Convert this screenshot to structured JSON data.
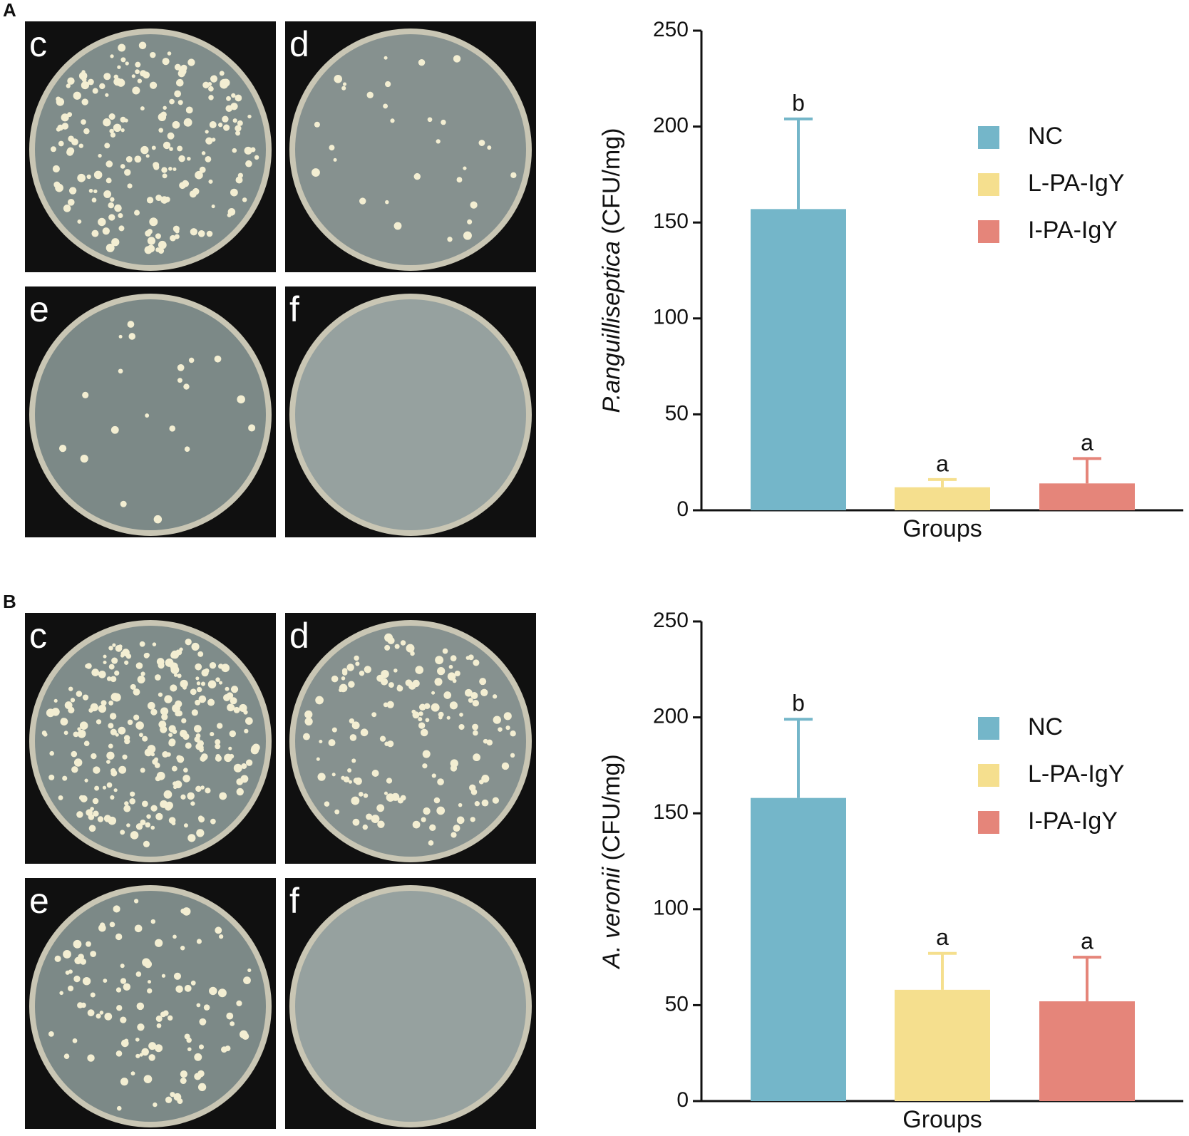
{
  "panels": [
    {
      "label": "A",
      "plates": [
        "c",
        "d",
        "e",
        "f"
      ]
    },
    {
      "label": "B",
      "plates": [
        "c",
        "d",
        "e",
        "f"
      ]
    }
  ],
  "chart_data": [
    {
      "type": "bar",
      "ylabel_species": "P.anguilliseptica",
      "ylabel_unit": "(CFU/mg)",
      "xlabel": "Groups",
      "ylim": [
        0,
        250
      ],
      "yticks": [
        0,
        50,
        100,
        150,
        200,
        250
      ],
      "legend": "upper right",
      "series": [
        {
          "name": "NC",
          "color": "#74b6c9",
          "values": [
            157
          ],
          "errors": [
            47
          ],
          "significance": [
            "b"
          ]
        },
        {
          "name": "L-PA-IgY",
          "color": "#f5df8e",
          "values": [
            12
          ],
          "errors": [
            4
          ],
          "significance": [
            "a"
          ]
        },
        {
          "name": "I-PA-IgY",
          "color": "#e5857a",
          "values": [
            14
          ],
          "errors": [
            13
          ],
          "significance": [
            "a"
          ]
        }
      ]
    },
    {
      "type": "bar",
      "ylabel_species": "A. veronii",
      "ylabel_unit": "(CFU/mg)",
      "xlabel": "Groups",
      "ylim": [
        0,
        250
      ],
      "yticks": [
        0,
        50,
        100,
        150,
        200,
        250
      ],
      "legend": "upper right",
      "series": [
        {
          "name": "NC",
          "color": "#74b6c9",
          "values": [
            158
          ],
          "errors": [
            41
          ],
          "significance": [
            "b"
          ]
        },
        {
          "name": "L-PA-IgY",
          "color": "#f5df8e",
          "values": [
            58
          ],
          "errors": [
            19
          ],
          "significance": [
            "a"
          ]
        },
        {
          "name": "I-PA-IgY",
          "color": "#e5857a",
          "values": [
            52
          ],
          "errors": [
            23
          ],
          "significance": [
            "a"
          ]
        }
      ]
    }
  ]
}
